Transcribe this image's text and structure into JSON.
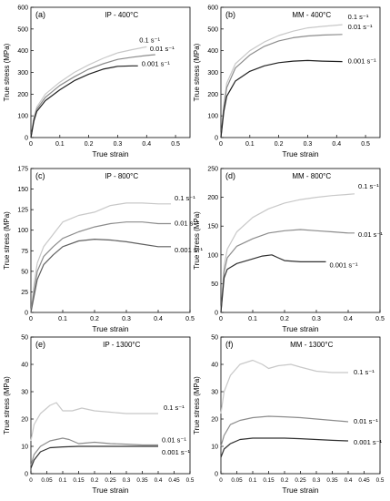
{
  "chart_data": [
    {
      "type": "line",
      "panel_label": "(a)",
      "title": "IP - 400°C",
      "xlabel": "True strain",
      "ylabel": "True stress (MPa)",
      "xlim": [
        0,
        0.55
      ],
      "ylim": [
        0,
        600
      ],
      "xticks": [
        0,
        0.1,
        0.2,
        0.3,
        0.4,
        0.5
      ],
      "xtick_labels": [
        "0",
        "0.1",
        "0.2",
        "0.3",
        "0.4",
        "0.5"
      ],
      "yticks": [
        0,
        100,
        200,
        300,
        400,
        500,
        600
      ],
      "ytick_labels": [
        "0",
        "100",
        "200",
        "300",
        "400",
        "500",
        "600"
      ],
      "grid": false,
      "series": [
        {
          "name": "0.1 s⁻¹",
          "color": "#c8c8c8",
          "x": [
            0,
            0.01,
            0.02,
            0.05,
            0.1,
            0.15,
            0.2,
            0.25,
            0.3,
            0.35,
            0.4
          ],
          "y": [
            0,
            90,
            140,
            200,
            255,
            300,
            335,
            365,
            390,
            405,
            418
          ]
        },
        {
          "name": "0.01 s⁻¹",
          "color": "#8c8c8c",
          "x": [
            0,
            0.01,
            0.02,
            0.05,
            0.1,
            0.15,
            0.2,
            0.25,
            0.3,
            0.35,
            0.4,
            0.43
          ],
          "y": [
            0,
            85,
            130,
            185,
            240,
            280,
            315,
            340,
            360,
            370,
            378,
            382
          ]
        },
        {
          "name": "0.001 s⁻¹",
          "color": "#202020",
          "x": [
            0,
            0.01,
            0.02,
            0.05,
            0.1,
            0.15,
            0.2,
            0.25,
            0.3,
            0.35,
            0.37
          ],
          "y": [
            0,
            75,
            120,
            170,
            220,
            262,
            292,
            315,
            328,
            330,
            330
          ]
        }
      ]
    },
    {
      "type": "line",
      "panel_label": "(b)",
      "title": "MM - 400°C",
      "xlabel": "True strain",
      "ylabel": "True stress (MPa)",
      "xlim": [
        0,
        0.55
      ],
      "ylim": [
        0,
        600
      ],
      "xticks": [
        0,
        0.1,
        0.2,
        0.3,
        0.4,
        0.5
      ],
      "xtick_labels": [
        "0",
        "0.1",
        "0.2",
        "0.3",
        "0.4",
        "0.5"
      ],
      "yticks": [
        0,
        100,
        200,
        300,
        400,
        500,
        600
      ],
      "ytick_labels": [
        "0",
        "100",
        "200",
        "300",
        "400",
        "500",
        "600"
      ],
      "grid": false,
      "series": [
        {
          "name": "0.1 s⁻¹",
          "color": "#c8c8c8",
          "x": [
            0,
            0.01,
            0.02,
            0.05,
            0.1,
            0.15,
            0.2,
            0.25,
            0.3,
            0.35,
            0.42
          ],
          "y": [
            0,
            150,
            250,
            340,
            400,
            440,
            470,
            490,
            505,
            512,
            520
          ]
        },
        {
          "name": "0.01 s⁻¹",
          "color": "#8c8c8c",
          "x": [
            0,
            0.01,
            0.02,
            0.05,
            0.1,
            0.15,
            0.2,
            0.25,
            0.3,
            0.35,
            0.42
          ],
          "y": [
            0,
            140,
            230,
            320,
            380,
            420,
            445,
            460,
            468,
            472,
            475
          ]
        },
        {
          "name": "0.001 s⁻¹",
          "color": "#202020",
          "x": [
            0,
            0.01,
            0.02,
            0.05,
            0.1,
            0.15,
            0.2,
            0.25,
            0.3,
            0.35,
            0.42
          ],
          "y": [
            0,
            120,
            190,
            260,
            305,
            330,
            345,
            352,
            355,
            352,
            350
          ]
        }
      ]
    },
    {
      "type": "line",
      "panel_label": "(c)",
      "title": "IP - 800°C",
      "xlabel": "True strain",
      "ylabel": "True stress (MPa)",
      "xlim": [
        0,
        0.5
      ],
      "ylim": [
        0,
        175
      ],
      "xticks": [
        0,
        0.1,
        0.2,
        0.3,
        0.4,
        0.5
      ],
      "xtick_labels": [
        "0",
        "0.1",
        "0.2",
        "0.3",
        "0.4",
        "0.5"
      ],
      "yticks": [
        0,
        25,
        50,
        75,
        100,
        125,
        150,
        175
      ],
      "ytick_labels": [
        "0",
        "25",
        "50",
        "75",
        "100",
        "125",
        "150",
        "175"
      ],
      "grid": false,
      "series": [
        {
          "name": "0.1 s⁻¹",
          "color": "#c8c8c8",
          "x": [
            0,
            0.01,
            0.02,
            0.04,
            0.07,
            0.1,
            0.15,
            0.2,
            0.25,
            0.3,
            0.35,
            0.4,
            0.44
          ],
          "y": [
            0,
            35,
            60,
            80,
            95,
            110,
            118,
            122,
            130,
            133,
            133,
            132,
            132
          ]
        },
        {
          "name": "0.01 s⁻¹",
          "color": "#8c8c8c",
          "x": [
            0,
            0.01,
            0.02,
            0.04,
            0.07,
            0.1,
            0.15,
            0.2,
            0.25,
            0.3,
            0.35,
            0.4,
            0.44
          ],
          "y": [
            0,
            25,
            50,
            68,
            80,
            90,
            98,
            104,
            108,
            110,
            110,
            108,
            108
          ]
        },
        {
          "name": "0.001 s⁻¹",
          "color": "#606060",
          "x": [
            0,
            0.01,
            0.02,
            0.04,
            0.07,
            0.1,
            0.15,
            0.2,
            0.25,
            0.3,
            0.35,
            0.4,
            0.44
          ],
          "y": [
            0,
            20,
            40,
            58,
            70,
            80,
            87,
            89,
            88,
            86,
            83,
            80,
            80
          ]
        }
      ]
    },
    {
      "type": "line",
      "panel_label": "(d)",
      "title": "MM - 800°C",
      "xlabel": "True strain",
      "ylabel": "True stress (MPa)",
      "xlim": [
        0,
        0.5
      ],
      "ylim": [
        0,
        250
      ],
      "xticks": [
        0,
        0.1,
        0.2,
        0.3,
        0.4,
        0.5
      ],
      "xtick_labels": [
        "0",
        "0.1",
        "0.2",
        "0.3",
        "0.4",
        "0.5"
      ],
      "yticks": [
        0,
        50,
        100,
        150,
        200,
        250
      ],
      "ytick_labels": [
        "0",
        "50",
        "100",
        "150",
        "200",
        "250"
      ],
      "grid": false,
      "series": [
        {
          "name": "0.1 s⁻¹",
          "color": "#c8c8c8",
          "x": [
            0,
            0.01,
            0.02,
            0.05,
            0.1,
            0.15,
            0.2,
            0.25,
            0.3,
            0.35,
            0.4,
            0.42
          ],
          "y": [
            0,
            80,
            110,
            140,
            165,
            180,
            190,
            196,
            200,
            203,
            205,
            206
          ]
        },
        {
          "name": "0.01 s⁻¹",
          "color": "#8c8c8c",
          "x": [
            0,
            0.01,
            0.02,
            0.05,
            0.1,
            0.15,
            0.2,
            0.25,
            0.3,
            0.35,
            0.4,
            0.42
          ],
          "y": [
            0,
            70,
            95,
            115,
            128,
            138,
            142,
            144,
            142,
            140,
            138,
            138
          ]
        },
        {
          "name": "0.001 s⁻¹",
          "color": "#303030",
          "x": [
            0,
            0.01,
            0.02,
            0.05,
            0.1,
            0.13,
            0.16,
            0.18,
            0.2,
            0.25,
            0.3,
            0.33
          ],
          "y": [
            0,
            60,
            75,
            85,
            93,
            98,
            100,
            95,
            90,
            88,
            88,
            88
          ]
        }
      ]
    },
    {
      "type": "line",
      "panel_label": "(e)",
      "title": "IP - 1300°C",
      "xlabel": "True strain",
      "ylabel": "True stress (MPa)",
      "xlim": [
        0,
        0.5
      ],
      "ylim": [
        0,
        50
      ],
      "xticks": [
        0,
        0.05,
        0.1,
        0.15,
        0.2,
        0.25,
        0.3,
        0.35,
        0.4,
        0.45,
        0.5
      ],
      "xtick_labels": [
        "0",
        "0.05",
        "0.1",
        "0.15",
        "0.2",
        "0.25",
        "0.3",
        "0.35",
        "0.4",
        "0.45",
        "0.5"
      ],
      "yticks": [
        0,
        10,
        20,
        30,
        40,
        50
      ],
      "ytick_labels": [
        "0",
        "10",
        "20",
        "30",
        "40",
        "50"
      ],
      "grid": false,
      "series": [
        {
          "name": "0.1 s⁻¹",
          "color": "#c8c8c8",
          "x": [
            0,
            0.01,
            0.03,
            0.06,
            0.08,
            0.1,
            0.13,
            0.16,
            0.2,
            0.25,
            0.3,
            0.35,
            0.4
          ],
          "y": [
            12,
            18,
            22,
            25,
            26,
            23,
            23,
            24,
            23,
            22.5,
            22,
            22,
            22
          ]
        },
        {
          "name": "0.01 s⁻¹",
          "color": "#8c8c8c",
          "x": [
            0,
            0.01,
            0.03,
            0.06,
            0.1,
            0.12,
            0.15,
            0.2,
            0.25,
            0.3,
            0.35,
            0.4
          ],
          "y": [
            3,
            7,
            10,
            12,
            13,
            12.5,
            11,
            11.5,
            11,
            10.8,
            10.5,
            10.5
          ]
        },
        {
          "name": "0.001 s⁻¹",
          "color": "#303030",
          "x": [
            0,
            0.01,
            0.03,
            0.06,
            0.1,
            0.15,
            0.2,
            0.25,
            0.3,
            0.35,
            0.4
          ],
          "y": [
            2,
            5,
            8,
            9.5,
            9.8,
            10,
            10,
            10,
            10,
            10,
            10
          ]
        }
      ]
    },
    {
      "type": "line",
      "panel_label": "(f)",
      "title": "MM - 1300°C",
      "xlabel": "True strain",
      "ylabel": "True stress (MPa)",
      "xlim": [
        0,
        0.5
      ],
      "ylim": [
        0,
        50
      ],
      "xticks": [
        0,
        0.05,
        0.1,
        0.15,
        0.2,
        0.25,
        0.3,
        0.35,
        0.4,
        0.45,
        0.5
      ],
      "xtick_labels": [
        "0",
        "0.05",
        "0.1",
        "0.15",
        "0.2",
        "0.25",
        "0.3",
        "0.35",
        "0.4",
        "0.45",
        "0.5"
      ],
      "yticks": [
        0,
        10,
        20,
        30,
        40,
        50
      ],
      "ytick_labels": [
        "0",
        "10",
        "20",
        "30",
        "40",
        "50"
      ],
      "grid": false,
      "series": [
        {
          "name": "0.1 s⁻¹",
          "color": "#c8c8c8",
          "x": [
            0,
            0.01,
            0.03,
            0.06,
            0.1,
            0.13,
            0.15,
            0.18,
            0.22,
            0.25,
            0.3,
            0.35,
            0.4
          ],
          "y": [
            22,
            30,
            36,
            40,
            41.5,
            40,
            38.5,
            39.5,
            40,
            39,
            37.5,
            37,
            37
          ]
        },
        {
          "name": "0.01 s⁻¹",
          "color": "#8c8c8c",
          "x": [
            0,
            0.01,
            0.03,
            0.06,
            0.1,
            0.15,
            0.2,
            0.25,
            0.3,
            0.35,
            0.4
          ],
          "y": [
            10,
            14,
            18,
            19.5,
            20.5,
            21,
            20.8,
            20.5,
            20,
            19.5,
            19
          ]
        },
        {
          "name": "0.001 s⁻¹",
          "color": "#303030",
          "x": [
            0,
            0.01,
            0.03,
            0.06,
            0.1,
            0.15,
            0.2,
            0.25,
            0.3,
            0.35,
            0.4
          ],
          "y": [
            6,
            9,
            11,
            12.5,
            13,
            13,
            13,
            12.8,
            12.5,
            12.2,
            12
          ]
        }
      ]
    }
  ]
}
